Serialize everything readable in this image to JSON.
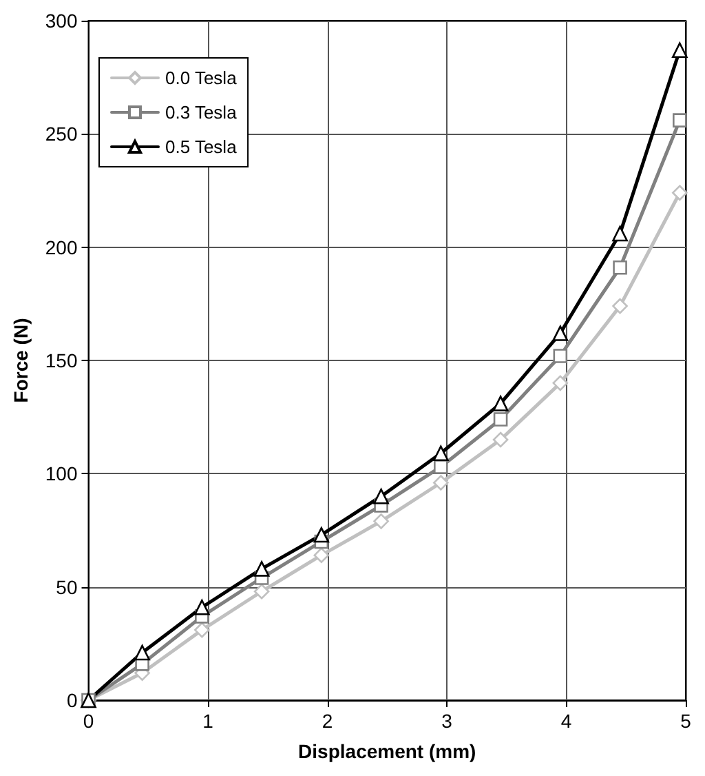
{
  "chart_data": {
    "type": "line",
    "xlabel": "Displacement (mm)",
    "ylabel": "Force (N)",
    "x": [
      0,
      0.45,
      0.95,
      1.45,
      1.95,
      2.45,
      2.95,
      3.45,
      3.95,
      4.45,
      4.95
    ],
    "series": [
      {
        "name": "0.0 Tesla",
        "color": "#c0c0c0",
        "marker": "diamond",
        "values": [
          0,
          12,
          31,
          48,
          64,
          79,
          96,
          115,
          140,
          174,
          224
        ]
      },
      {
        "name": "0.3 Tesla",
        "color": "#808080",
        "marker": "square",
        "values": [
          0,
          16,
          37,
          54,
          70,
          86,
          103,
          124,
          152,
          191,
          256
        ]
      },
      {
        "name": "0.5 Tesla",
        "color": "#000000",
        "marker": "triangle",
        "values": [
          0,
          21,
          41,
          58,
          73,
          90,
          109,
          131,
          162,
          206,
          287
        ]
      }
    ],
    "xlim": [
      0,
      5
    ],
    "xticks": [
      0,
      1,
      2,
      3,
      4,
      5
    ],
    "ylim": [
      0,
      300
    ],
    "yticks": [
      0,
      50,
      100,
      150,
      200,
      250,
      300
    ],
    "grid": true,
    "legend": "top left",
    "line_style": "solid"
  }
}
